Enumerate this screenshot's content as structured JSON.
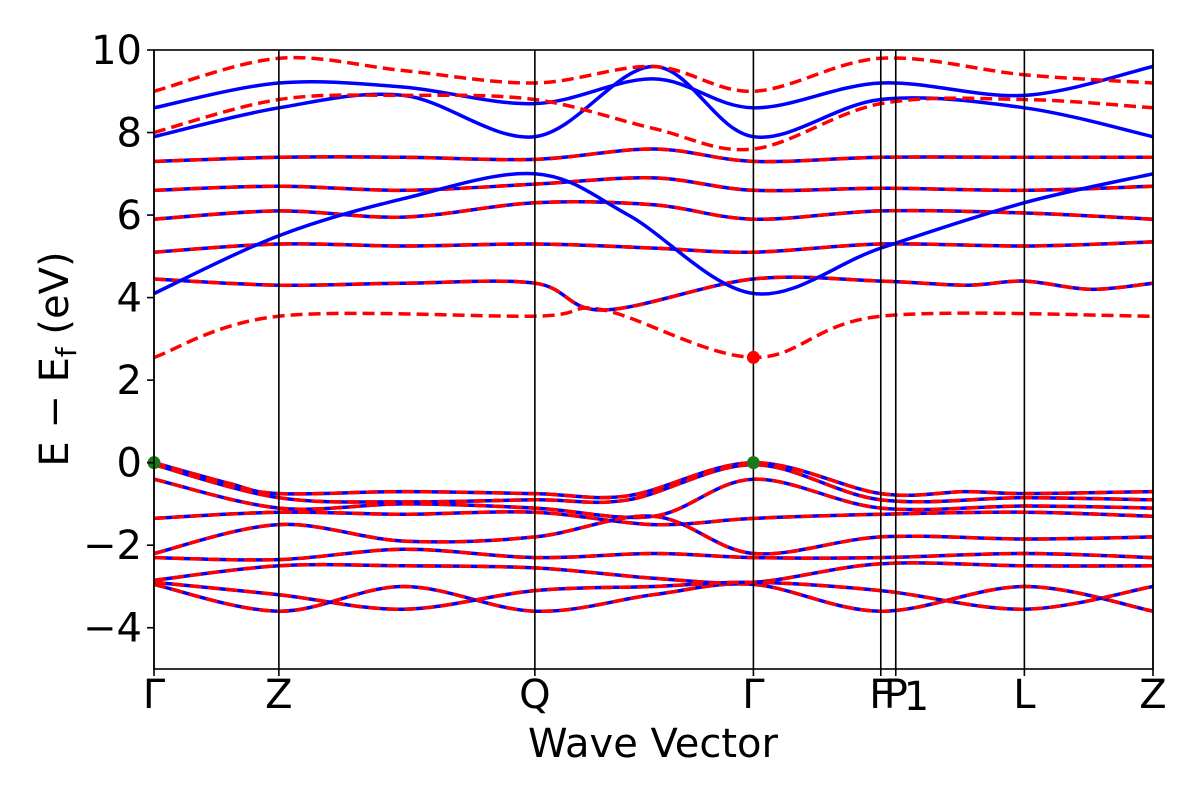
{
  "chart_data": {
    "type": "line",
    "title": "",
    "xlabel": "Wave Vector",
    "ylabel": "E − E",
    "ylabel_subscript": "f",
    "ylabel_unit": " (eV)",
    "ylim": [
      -5,
      10
    ],
    "yticks": [
      -4,
      -2,
      0,
      2,
      4,
      6,
      8,
      10
    ],
    "ytick_labels": [
      "−4",
      "−2",
      "0",
      "2",
      "4",
      "6",
      "8",
      "10"
    ],
    "x_range": [
      0,
      8
    ],
    "kpoints": [
      {
        "label": "Γ",
        "x": 0.0
      },
      {
        "label": "Z",
        "x": 1.0
      },
      {
        "label": "Q",
        "x": 3.05
      },
      {
        "label": "Γ",
        "x": 4.8
      },
      {
        "label": "F",
        "x": 5.82
      },
      {
        "label": "P",
        "x": 5.94
      },
      {
        "label": "1",
        "x": 5.94
      },
      {
        "label": "L",
        "x": 6.97
      },
      {
        "label": "Z",
        "x": 8.0
      }
    ],
    "markers": [
      {
        "name": "VBM",
        "x": 0.0,
        "y": 0.0,
        "color": "#1a7a1a"
      },
      {
        "name": "VBM",
        "x": 4.8,
        "y": 0.0,
        "color": "#1a7a1a"
      },
      {
        "name": "CBM",
        "x": 4.8,
        "y": 2.55,
        "color": "#ff0000"
      }
    ],
    "colors": {
      "spin_up": "#0000ff",
      "spin_down": "#ff0000",
      "axes": "#000000"
    },
    "series": [
      {
        "style": "dashed",
        "color": "#ff0000",
        "x": [
          0,
          1.0,
          3.05,
          3.6,
          4.8,
          5.82,
          8.0
        ],
        "y": [
          2.55,
          3.55,
          3.55,
          3.7,
          2.55,
          3.55,
          3.55
        ]
      },
      {
        "style": "both",
        "x": [
          0,
          1.0,
          2.0,
          3.05,
          3.6,
          4.8,
          5.82,
          6.5,
          6.97,
          7.5,
          8.0
        ],
        "y": [
          4.45,
          4.3,
          4.35,
          4.35,
          3.7,
          4.45,
          4.4,
          4.3,
          4.4,
          4.2,
          4.35
        ]
      },
      {
        "style": "both",
        "x": [
          0,
          1.0,
          2.0,
          3.05,
          4.0,
          4.8,
          5.82,
          6.97,
          8.0
        ],
        "y": [
          5.1,
          5.3,
          5.25,
          5.3,
          5.2,
          5.1,
          5.3,
          5.25,
          5.35
        ]
      },
      {
        "style": "both",
        "x": [
          0,
          1.0,
          2.0,
          3.05,
          4.0,
          4.8,
          5.82,
          6.97,
          8.0
        ],
        "y": [
          5.9,
          6.1,
          5.95,
          6.3,
          6.25,
          5.9,
          6.1,
          6.05,
          5.9
        ]
      },
      {
        "style": "both",
        "x": [
          0,
          1.0,
          2.0,
          3.05,
          4.0,
          4.8,
          5.82,
          6.97,
          8.0
        ],
        "y": [
          6.6,
          6.7,
          6.6,
          6.75,
          6.9,
          6.6,
          6.65,
          6.6,
          6.7
        ]
      },
      {
        "style": "both",
        "x": [
          0,
          1.0,
          2.0,
          3.05,
          4.0,
          4.8,
          5.82,
          6.97,
          8.0
        ],
        "y": [
          7.3,
          7.4,
          7.4,
          7.35,
          7.6,
          7.3,
          7.4,
          7.4,
          7.4
        ]
      },
      {
        "style": "solid",
        "color": "#0000ff",
        "x": [
          0,
          1.0,
          2.0,
          3.05,
          3.8,
          4.8,
          5.82,
          6.97,
          8.0
        ],
        "y": [
          4.1,
          5.5,
          6.4,
          7.0,
          6.0,
          4.1,
          5.2,
          6.3,
          7.0
        ]
      },
      {
        "style": "solid",
        "color": "#0000ff",
        "x": [
          0,
          1.0,
          2.0,
          3.05,
          4.0,
          4.8,
          5.82,
          6.97,
          8.0
        ],
        "y": [
          7.9,
          8.6,
          8.9,
          7.9,
          9.6,
          7.9,
          8.8,
          8.6,
          7.9
        ]
      },
      {
        "style": "solid",
        "color": "#0000ff",
        "x": [
          0,
          1.0,
          2.0,
          3.05,
          4.0,
          4.8,
          5.82,
          6.97,
          8.0
        ],
        "y": [
          8.6,
          9.2,
          9.1,
          8.7,
          9.3,
          8.6,
          9.2,
          8.9,
          9.6
        ]
      },
      {
        "style": "dashed",
        "color": "#ff0000",
        "x": [
          0,
          1.0,
          2.0,
          3.05,
          4.0,
          4.8,
          5.82,
          6.97,
          8.0
        ],
        "y": [
          8.0,
          8.8,
          8.9,
          8.8,
          8.1,
          7.6,
          8.7,
          8.8,
          8.6
        ]
      },
      {
        "style": "dashed",
        "color": "#ff0000",
        "x": [
          0,
          1.0,
          2.0,
          3.05,
          4.0,
          4.8,
          5.82,
          6.97,
          8.0
        ],
        "y": [
          9.0,
          9.8,
          9.5,
          9.2,
          9.6,
          9.0,
          9.8,
          9.4,
          9.2
        ]
      },
      {
        "style": "both",
        "x": [
          0,
          0.6,
          1.0,
          2.0,
          3.05,
          3.8,
          4.8,
          5.82,
          6.5,
          6.97,
          8.0
        ],
        "y": [
          0.0,
          -0.5,
          -0.75,
          -0.7,
          -0.75,
          -0.8,
          0.0,
          -0.75,
          -0.7,
          -0.75,
          -0.7
        ]
      },
      {
        "style": "both",
        "x": [
          0,
          1.0,
          2.0,
          3.05,
          3.8,
          4.8,
          5.82,
          6.97,
          8.0
        ],
        "y": [
          -0.05,
          -0.85,
          -0.95,
          -0.9,
          -0.9,
          -0.05,
          -0.9,
          -0.85,
          -0.9
        ]
      },
      {
        "style": "both",
        "x": [
          0,
          1.0,
          2.0,
          3.05,
          4.0,
          4.8,
          5.82,
          6.97,
          8.0
        ],
        "y": [
          -0.4,
          -1.1,
          -1.0,
          -1.1,
          -1.3,
          -0.4,
          -1.1,
          -1.05,
          -1.1
        ]
      },
      {
        "style": "both",
        "x": [
          0,
          1.0,
          2.0,
          3.05,
          4.0,
          4.8,
          5.82,
          6.97,
          8.0
        ],
        "y": [
          -1.35,
          -1.2,
          -1.25,
          -1.2,
          -1.5,
          -1.35,
          -1.25,
          -1.2,
          -1.3
        ]
      },
      {
        "style": "both",
        "x": [
          0,
          1.0,
          2.0,
          3.05,
          4.0,
          4.8,
          5.82,
          6.97,
          8.0
        ],
        "y": [
          -2.2,
          -1.5,
          -1.9,
          -1.8,
          -1.3,
          -2.2,
          -1.8,
          -1.85,
          -1.8
        ]
      },
      {
        "style": "both",
        "x": [
          0,
          1.0,
          2.0,
          3.05,
          4.0,
          4.8,
          5.82,
          6.97,
          8.0
        ],
        "y": [
          -2.3,
          -2.35,
          -2.1,
          -2.3,
          -2.2,
          -2.3,
          -2.3,
          -2.2,
          -2.3
        ]
      },
      {
        "style": "both",
        "x": [
          0,
          1.0,
          2.0,
          3.05,
          4.0,
          4.8,
          5.82,
          6.97,
          8.0
        ],
        "y": [
          -2.85,
          -2.5,
          -2.5,
          -2.55,
          -2.8,
          -2.9,
          -2.45,
          -2.5,
          -2.5
        ]
      },
      {
        "style": "both",
        "x": [
          0,
          1.0,
          2.0,
          3.05,
          4.0,
          4.8,
          5.82,
          6.97,
          8.0
        ],
        "y": [
          -2.95,
          -3.6,
          -3.0,
          -3.6,
          -3.2,
          -2.95,
          -3.6,
          -3.0,
          -3.6
        ]
      },
      {
        "style": "both",
        "x": [
          0,
          1.0,
          2.0,
          3.05,
          4.0,
          4.8,
          5.82,
          6.97,
          8.0
        ],
        "y": [
          -2.9,
          -3.2,
          -3.55,
          -3.1,
          -3.0,
          -2.9,
          -3.1,
          -3.55,
          -3.0
        ]
      }
    ]
  }
}
